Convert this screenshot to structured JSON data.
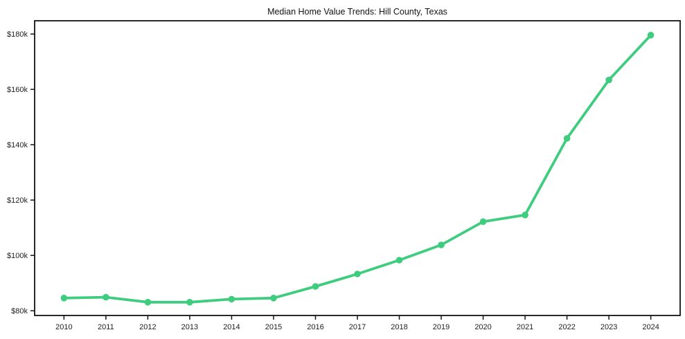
{
  "page": {
    "background": "#ffffff"
  },
  "chart_data": {
    "type": "line",
    "title": "Median Home Value Trends: Hill County, Texas",
    "xlabel": "",
    "ylabel": "",
    "grid": false,
    "legend": "none",
    "x": [
      2010,
      2011,
      2012,
      2013,
      2014,
      2015,
      2016,
      2017,
      2018,
      2019,
      2020,
      2021,
      2022,
      2023,
      2024
    ],
    "x_labels": [
      "2010",
      "2011",
      "2012",
      "2013",
      "2014",
      "2015",
      "2016",
      "2017",
      "2018",
      "2019",
      "2020",
      "2021",
      "2022",
      "2023",
      "2024"
    ],
    "series": [
      {
        "name": "Median Home Value",
        "values": [
          84600,
          84900,
          83100,
          83100,
          84200,
          84600,
          88800,
          93300,
          98300,
          103800,
          112200,
          114600,
          142300,
          163400,
          179600
        ]
      }
    ],
    "yticks": {
      "values": [
        80000,
        100000,
        120000,
        140000,
        160000,
        180000
      ],
      "labels": [
        "$80k",
        "$100k",
        "$120k",
        "$140k",
        "$160k",
        "$180k"
      ]
    },
    "xlim": [
      2009.3,
      2024.7
    ],
    "ylim": [
      78300,
      184800
    ],
    "colors": {
      "line": "#3ecc7e",
      "marker": "#3ecc7e",
      "axis": "#111111",
      "tick_text": "#1c1c1c",
      "plot_background": "#ffffff"
    }
  }
}
